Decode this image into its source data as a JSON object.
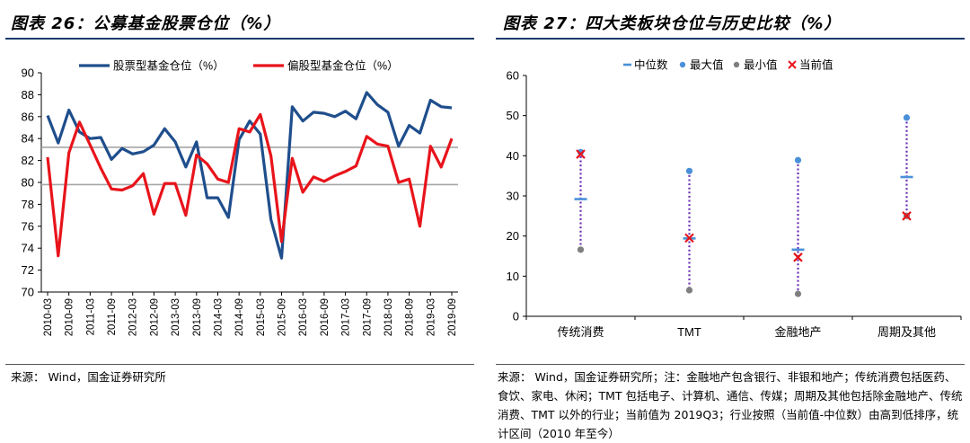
{
  "panels": {
    "left": {
      "title": "图表 26：公募基金股票仓位（%）",
      "source": "来源： Wind，国金证券研究所"
    },
    "right": {
      "title": "图表 27：四大类板块仓位与历史比较（%）",
      "source": "来源： Wind，国金证券研究所；注：金融地产包含银行、非银和地产；传统消费包括医药、食饮、家电、休闲；TMT 包括电子、计算机、通信、传媒；周期及其他包括除金融地产、传统消费、TMT 以外的行业；当前值为 2019Q3；行业按照（当前值-中位数）由高到低排序，统计区间（2010 年至今）"
    }
  },
  "colors": {
    "blue": "#1f4e8c",
    "red": "#e8141b",
    "grid": "#a6a6a6",
    "rule": "#1a3a6b",
    "dotted": "#6a2fb5",
    "dot": "#4a90d9",
    "minDot": "#7f7f7f",
    "cross": "#e8141b"
  },
  "chart_data": [
    {
      "type": "line",
      "title": "",
      "ylim": [
        70,
        90
      ],
      "yticks": [
        70,
        72,
        74,
        76,
        78,
        80,
        82,
        84,
        86,
        88,
        90
      ],
      "xticks": [
        "2010-03",
        "2010-09",
        "2011-03",
        "2011-09",
        "2012-03",
        "2012-09",
        "2013-03",
        "2013-09",
        "2014-03",
        "2014-09",
        "2015-03",
        "2015-09",
        "2016-03",
        "2016-09",
        "2017-03",
        "2017-09",
        "2018-03",
        "2018-09",
        "2019-03",
        "2019-09"
      ],
      "reference_lines": [
        83.2,
        79.8
      ],
      "legend_position": "top",
      "series": [
        {
          "name": "股票型基金仓位（%）",
          "values": [
            86.1,
            83.6,
            86.6,
            84.6,
            84.0,
            84.1,
            82.1,
            83.1,
            82.6,
            82.8,
            83.4,
            84.9,
            83.7,
            81.4,
            83.7,
            78.6,
            78.6,
            76.8,
            83.9,
            85.6,
            84.4,
            76.6,
            73.1,
            86.9,
            85.6,
            86.4,
            86.3,
            86.0,
            86.5,
            85.8,
            88.2,
            87.1,
            86.4,
            83.3,
            85.2,
            84.5,
            87.5,
            86.9,
            86.8
          ]
        },
        {
          "name": "偏股型基金仓位（%）",
          "values": [
            82.3,
            73.3,
            82.7,
            85.5,
            83.4,
            81.3,
            79.4,
            79.3,
            79.7,
            80.8,
            77.1,
            79.9,
            79.9,
            77.0,
            82.5,
            81.7,
            80.3,
            80.0,
            84.9,
            84.6,
            86.2,
            82.4,
            74.6,
            82.2,
            79.1,
            80.5,
            80.1,
            80.6,
            81.0,
            81.5,
            84.2,
            83.5,
            83.3,
            80.0,
            80.3,
            76.0,
            83.3,
            81.4,
            84.0
          ]
        }
      ]
    },
    {
      "type": "scatter",
      "title": "",
      "ylim": [
        0,
        60
      ],
      "yticks": [
        0,
        10,
        20,
        30,
        40,
        50,
        60
      ],
      "categories": [
        "传统消费",
        "TMT",
        "金融地产",
        "周期及其他"
      ],
      "legend": [
        "中位数",
        "最大值",
        "最小值",
        "当前值"
      ],
      "legend_position": "top",
      "series": [
        {
          "name": "中位数",
          "values": [
            29.2,
            19.4,
            16.6,
            34.7
          ]
        },
        {
          "name": "最大值",
          "values": [
            40.9,
            36.2,
            38.9,
            49.5
          ]
        },
        {
          "name": "最小值",
          "values": [
            16.6,
            6.5,
            5.6,
            25.0
          ]
        },
        {
          "name": "当前值",
          "values": [
            40.4,
            19.5,
            14.7,
            25.0
          ]
        }
      ]
    }
  ]
}
